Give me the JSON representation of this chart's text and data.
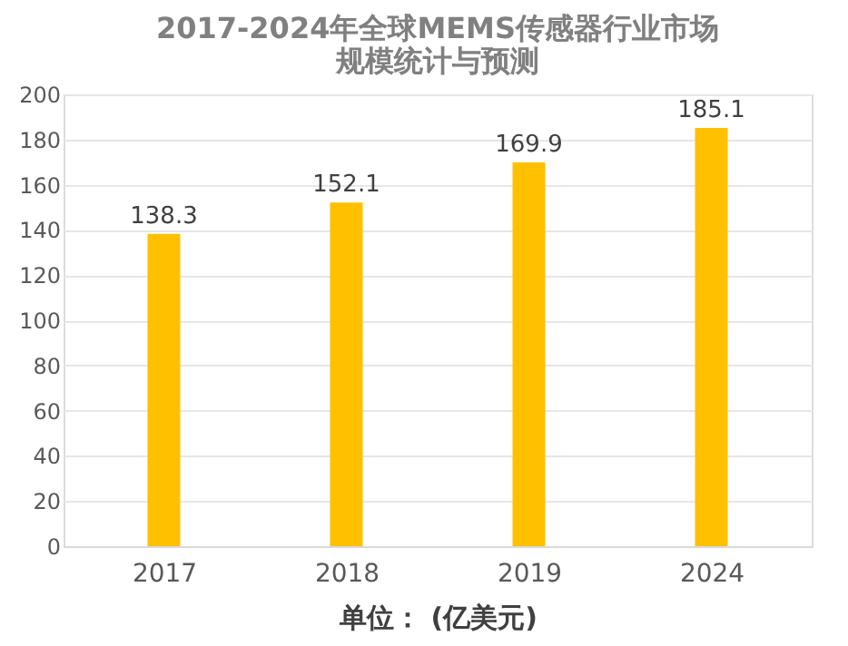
{
  "chart_data": {
    "type": "bar",
    "title": "2017-2024年全球MEMS传感器行业市场规模统计与预测",
    "xlabel": "单位：  (亿美元)",
    "categories": [
      "2017",
      "2018",
      "2019",
      "2024"
    ],
    "values": [
      138.3,
      152.1,
      169.9,
      185.1
    ],
    "color": "#ffc000",
    "ylim": [
      0,
      200
    ],
    "yticks": [
      0,
      20,
      40,
      60,
      80,
      100,
      120,
      140,
      160,
      180,
      200
    ],
    "grid": "y",
    "data_labels": true
  }
}
